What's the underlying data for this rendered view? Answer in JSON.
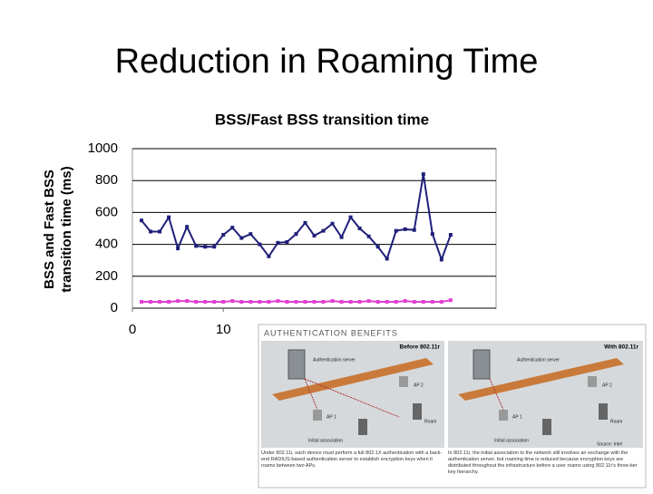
{
  "slide_title": "Reduction in Roaming Time",
  "chart_data": {
    "type": "line",
    "title": "BSS/Fast BSS transition time",
    "ylabel": [
      "BSS and Fast BSS",
      "transition time (ms)"
    ],
    "x": [
      1,
      2,
      3,
      4,
      5,
      6,
      7,
      8,
      9,
      10,
      11,
      12,
      13,
      14,
      15,
      16,
      17,
      18,
      19,
      20,
      21,
      22,
      23,
      24,
      25,
      26,
      27,
      28,
      29,
      30,
      31,
      32,
      33,
      34,
      35
    ],
    "series": [
      {
        "color": "#1f1f7a",
        "values": [
          550,
          480,
          480,
          570,
          375,
          510,
          390,
          385,
          385,
          460,
          505,
          440,
          465,
          400,
          325,
          410,
          415,
          465,
          535,
          455,
          485,
          530,
          445,
          570,
          500,
          450,
          385,
          310,
          485,
          495,
          490,
          840,
          465,
          305,
          460
        ]
      },
      {
        "color": "#e040d0",
        "values": [
          40,
          40,
          40,
          40,
          45,
          45,
          40,
          40,
          40,
          40,
          45,
          40,
          40,
          40,
          40,
          45,
          40,
          40,
          40,
          40,
          40,
          45,
          40,
          40,
          40,
          45,
          40,
          40,
          40,
          45,
          40,
          40,
          40,
          40,
          50
        ]
      }
    ],
    "xlim": [
      0,
      40
    ],
    "xticks": [
      0,
      10
    ],
    "ylim": [
      0,
      1000
    ],
    "yticks": [
      0,
      200,
      400,
      600,
      800,
      1000
    ],
    "grid": true
  },
  "inset": {
    "title": "AUTHENTICATION BENEFITS",
    "before": {
      "title": "Before 802.11r",
      "server": "Authentication server",
      "ap2": "AP 2",
      "ap1": "AP 1",
      "roam": "Roam",
      "initial": "Initial association",
      "caption": "Under 802.11i, each device must perform a full 802.1X authentication with a back-end RADIUS-based authentication server to establish encryption keys when it roams between two APs."
    },
    "after": {
      "title": "With 802.11r",
      "server": "Authentication server",
      "ap2": "AP 2",
      "ap1": "AP 1",
      "roam": "Roam",
      "initial": "Initial association",
      "source": "Source: Intel",
      "caption": "In 802.11r, the initial association to the network still involves an exchange with the authentication server, but roaming time is reduced because encryption keys are distributed throughout the infrastructure before a user roams using 802.11r's three-tier key hierarchy."
    }
  }
}
